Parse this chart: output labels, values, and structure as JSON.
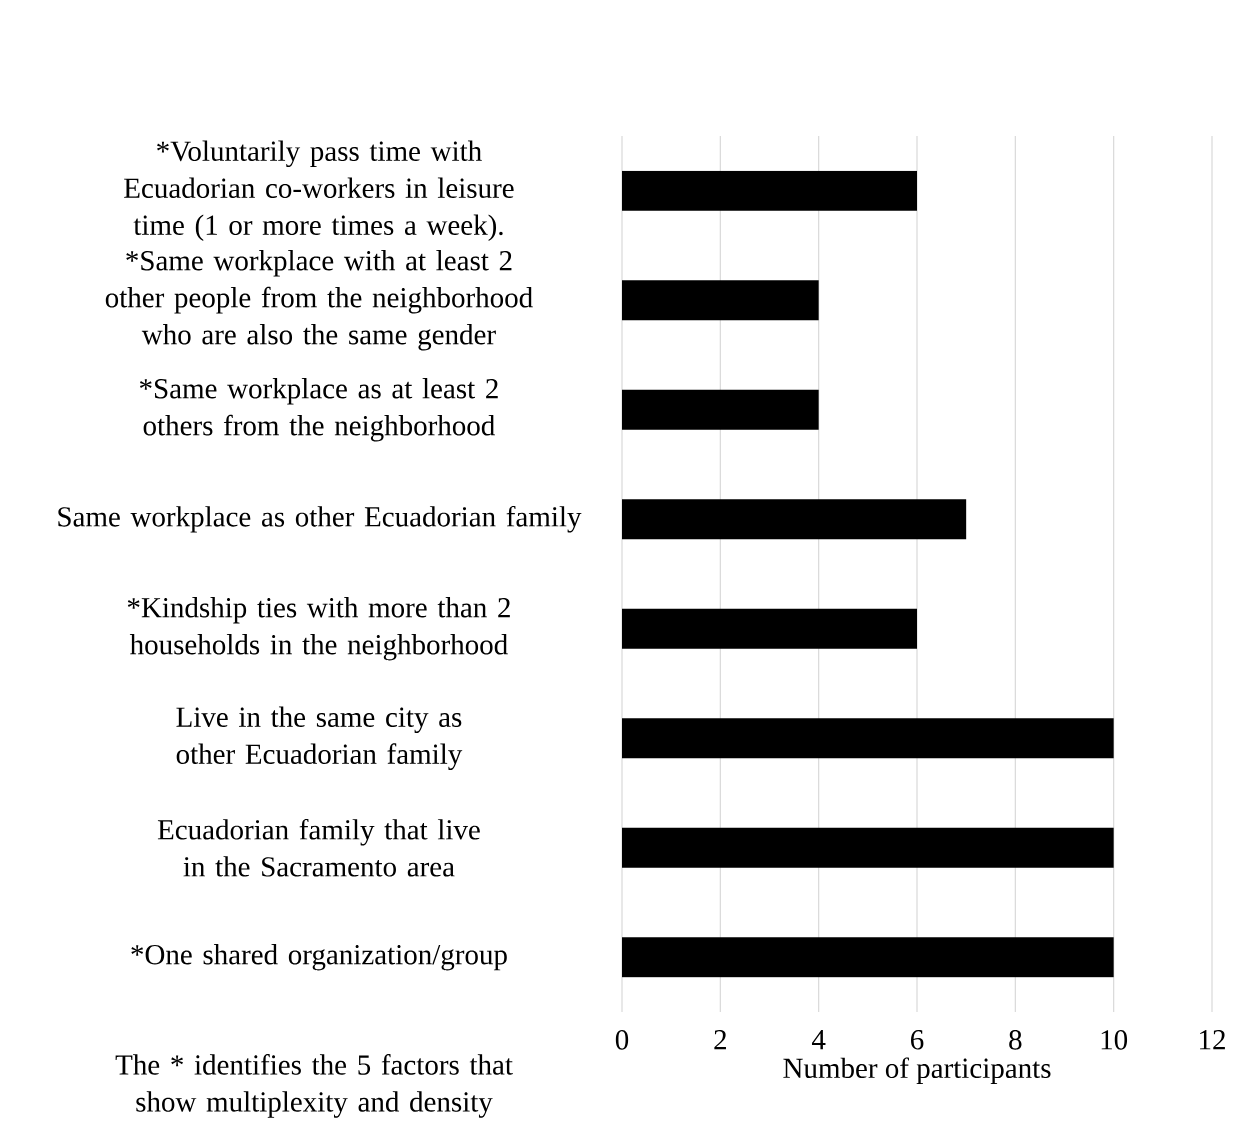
{
  "chart_data": {
    "type": "bar",
    "orientation": "horizontal",
    "categories": [
      "*Voluntarily pass time with Ecuadorian co-workers in leisure time (1 or more times a week).",
      "*Same workplace with at least 2 other people from the neighborhood who are also the same gender",
      "*Same workplace as at least 2 others from the neighborhood",
      "Same workplace as other Ecuadorian family",
      "*Kindship ties with more than 2 households in the neighborhood",
      "Live in the same city as other Ecuadorian family",
      "Ecuadorian family that live in the Sacramento area",
      "*One shared organization/group"
    ],
    "values": [
      6,
      4,
      4,
      7,
      6,
      10,
      10,
      10
    ],
    "color": "#000000",
    "xlim": [
      0,
      12
    ],
    "xticks": [
      0,
      2,
      4,
      6,
      8,
      10,
      12
    ],
    "xlabel": "Number of participants",
    "grid": "x",
    "annotations": [
      "The * identifies the 5 factors that show multiplexity and density"
    ]
  }
}
